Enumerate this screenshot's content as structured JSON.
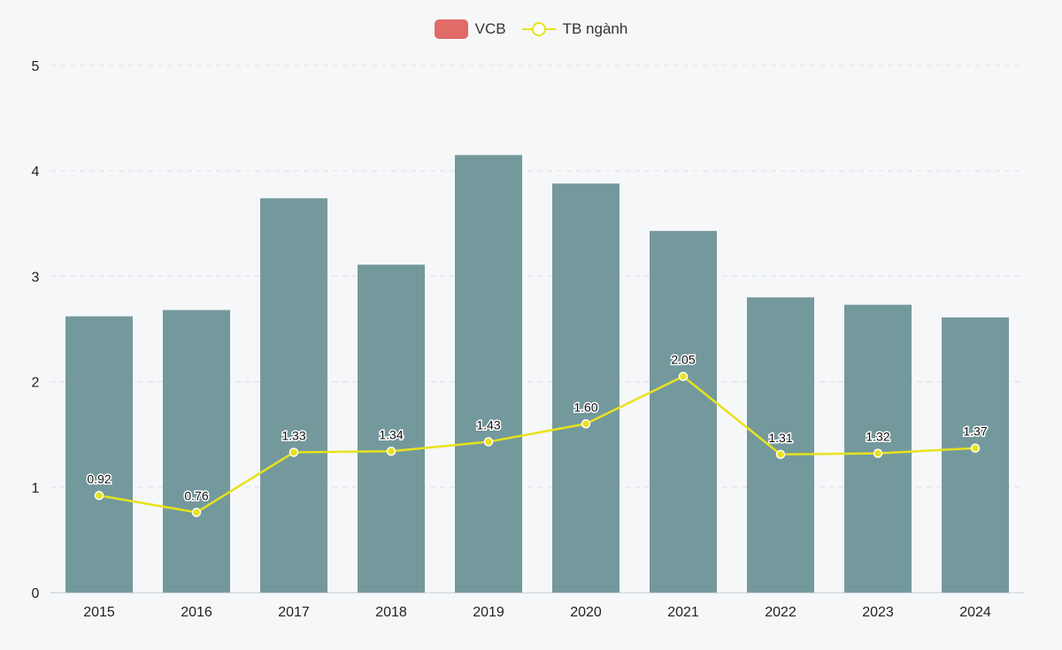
{
  "chart_data": {
    "type": "bar+line",
    "categories": [
      "2015",
      "2016",
      "2017",
      "2018",
      "2019",
      "2020",
      "2021",
      "2022",
      "2023",
      "2024"
    ],
    "series": [
      {
        "name": "VCB",
        "type": "bar",
        "legend_color": "#e06b67",
        "bar_color": "#74999d",
        "values": [
          2.62,
          2.68,
          3.74,
          3.11,
          4.15,
          3.88,
          3.43,
          2.8,
          2.73,
          2.61
        ]
      },
      {
        "name": "TB ngành",
        "type": "line",
        "color": "#e8e21d",
        "values": [
          0.92,
          0.76,
          1.33,
          1.34,
          1.43,
          1.6,
          2.05,
          1.31,
          1.32,
          1.37
        ],
        "labels": [
          "0.92",
          "0.76",
          "1.33",
          "1.34",
          "1.43",
          "1.60",
          "2.05",
          "1.31",
          "1.32",
          "1.37"
        ]
      }
    ],
    "yticks": [
      "0",
      "1",
      "2",
      "3",
      "4",
      "5"
    ],
    "ylim": [
      0,
      5
    ],
    "grid": true,
    "legend_position": "top-center"
  }
}
